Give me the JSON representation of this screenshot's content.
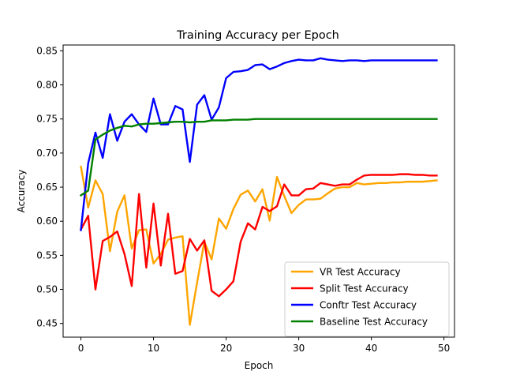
{
  "chart_data": {
    "type": "line",
    "title": "Training Accuracy per Epoch",
    "xlabel": "Epoch",
    "ylabel": "Accuracy",
    "xlim": [
      -2.45,
      51.45
    ],
    "ylim": [
      0.43,
      0.8585
    ],
    "xticks": [
      0,
      10,
      20,
      30,
      40,
      50
    ],
    "yticks": [
      0.45,
      0.5,
      0.55,
      0.6,
      0.65,
      0.7,
      0.75,
      0.8,
      0.85
    ],
    "ytick_labels": [
      "0.45",
      "0.50",
      "0.55",
      "0.60",
      "0.65",
      "0.70",
      "0.75",
      "0.80",
      "0.85"
    ],
    "x": [
      0,
      1,
      2,
      3,
      4,
      5,
      6,
      7,
      8,
      9,
      10,
      11,
      12,
      13,
      14,
      15,
      16,
      17,
      18,
      19,
      20,
      21,
      22,
      23,
      24,
      25,
      26,
      27,
      28,
      29,
      30,
      31,
      32,
      33,
      34,
      35,
      36,
      37,
      38,
      39,
      40,
      41,
      42,
      43,
      44,
      45,
      46,
      47,
      48,
      49
    ],
    "legend_position": "lower right",
    "grid": false,
    "series": [
      {
        "name": "VR Test Accuracy",
        "color": "#ffa500",
        "values": [
          0.68,
          0.62,
          0.66,
          0.64,
          0.556,
          0.614,
          0.638,
          0.56,
          0.587,
          0.588,
          0.538,
          0.552,
          0.573,
          0.576,
          0.578,
          0.448,
          0.51,
          0.57,
          0.544,
          0.604,
          0.589,
          0.618,
          0.639,
          0.645,
          0.629,
          0.647,
          0.601,
          0.665,
          0.637,
          0.612,
          0.624,
          0.632,
          0.632,
          0.633,
          0.641,
          0.648,
          0.65,
          0.65,
          0.656,
          0.654,
          0.655,
          0.656,
          0.656,
          0.657,
          0.657,
          0.658,
          0.658,
          0.658,
          0.659,
          0.66
        ]
      },
      {
        "name": "Split Test Accuracy",
        "color": "#ff0000",
        "values": [
          0.588,
          0.608,
          0.5,
          0.571,
          0.577,
          0.585,
          0.552,
          0.505,
          0.64,
          0.532,
          0.626,
          0.535,
          0.611,
          0.523,
          0.527,
          0.574,
          0.557,
          0.572,
          0.498,
          0.49,
          0.5,
          0.512,
          0.57,
          0.597,
          0.588,
          0.621,
          0.615,
          0.622,
          0.654,
          0.638,
          0.638,
          0.647,
          0.648,
          0.656,
          0.654,
          0.652,
          0.654,
          0.654,
          0.661,
          0.667,
          0.668,
          0.668,
          0.668,
          0.668,
          0.669,
          0.669,
          0.668,
          0.668,
          0.667,
          0.667
        ]
      },
      {
        "name": "Conftr Test Accuracy",
        "color": "#0000ff",
        "values": [
          0.587,
          0.685,
          0.73,
          0.693,
          0.757,
          0.718,
          0.746,
          0.757,
          0.742,
          0.731,
          0.78,
          0.742,
          0.742,
          0.769,
          0.764,
          0.687,
          0.771,
          0.785,
          0.749,
          0.767,
          0.81,
          0.819,
          0.82,
          0.822,
          0.829,
          0.83,
          0.823,
          0.827,
          0.832,
          0.835,
          0.837,
          0.836,
          0.836,
          0.839,
          0.837,
          0.836,
          0.835,
          0.836,
          0.836,
          0.835,
          0.836,
          0.836,
          0.836,
          0.836,
          0.836,
          0.836,
          0.836,
          0.836,
          0.836,
          0.836
        ]
      },
      {
        "name": "Baseline Test Accuracy",
        "color": "#008000",
        "values": [
          0.638,
          0.645,
          0.72,
          0.727,
          0.733,
          0.737,
          0.74,
          0.739,
          0.742,
          0.743,
          0.743,
          0.744,
          0.745,
          0.746,
          0.746,
          0.745,
          0.746,
          0.746,
          0.748,
          0.748,
          0.748,
          0.749,
          0.749,
          0.749,
          0.75,
          0.75,
          0.75,
          0.75,
          0.75,
          0.75,
          0.75,
          0.75,
          0.75,
          0.75,
          0.75,
          0.75,
          0.75,
          0.75,
          0.75,
          0.75,
          0.75,
          0.75,
          0.75,
          0.75,
          0.75,
          0.75,
          0.75,
          0.75,
          0.75,
          0.75
        ]
      }
    ]
  }
}
